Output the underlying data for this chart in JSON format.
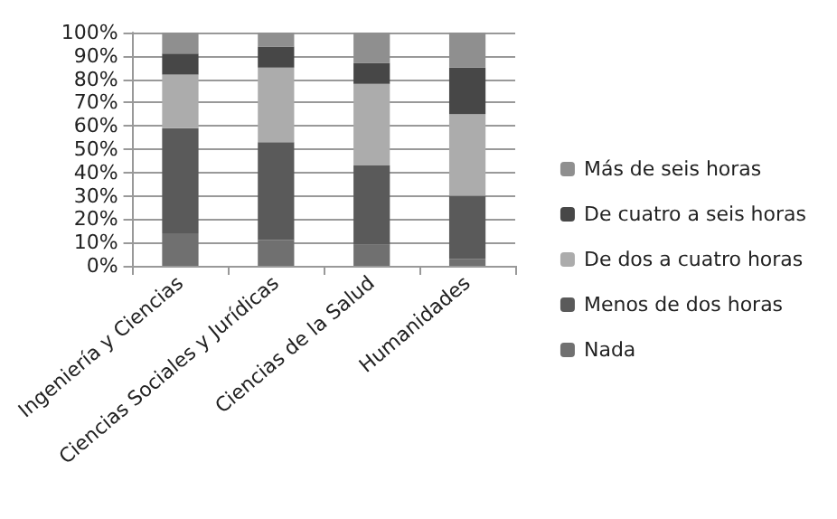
{
  "chart_data": {
    "type": "bar",
    "stacked": true,
    "categories": [
      "Ingeniería y Ciencias",
      "Ciencias Sociales y Jurídicas",
      "Ciencias de la Salud",
      "Humanidades"
    ],
    "series": [
      {
        "name": "Nada",
        "color": "#707070",
        "values": [
          14,
          11,
          9,
          3
        ]
      },
      {
        "name": "Menos de dos horas",
        "color": "#5a5a5a",
        "values": [
          45,
          42,
          34,
          27
        ]
      },
      {
        "name": "De dos a cuatro horas",
        "color": "#acacac",
        "values": [
          23,
          32,
          35,
          35
        ]
      },
      {
        "name": "De cuatro a seis horas",
        "color": "#474747",
        "values": [
          9,
          9,
          9,
          20
        ]
      },
      {
        "name": "Más de seis horas",
        "color": "#8f8f8f",
        "values": [
          9,
          6,
          13,
          15
        ]
      }
    ],
    "ylim": [
      0,
      100
    ],
    "yticks": [
      {
        "value": 0,
        "label": "0%"
      },
      {
        "value": 10,
        "label": "10%"
      },
      {
        "value": 20,
        "label": "20%"
      },
      {
        "value": 30,
        "label": "30%"
      },
      {
        "value": 40,
        "label": "40%"
      },
      {
        "value": 50,
        "label": "50%"
      },
      {
        "value": 60,
        "label": "60%"
      },
      {
        "value": 70,
        "label": "70%"
      },
      {
        "value": 80,
        "label": "80%"
      },
      {
        "value": 90,
        "label": "90%"
      },
      {
        "value": 100,
        "label": "100%"
      }
    ],
    "grid": "y",
    "legend": "right"
  }
}
